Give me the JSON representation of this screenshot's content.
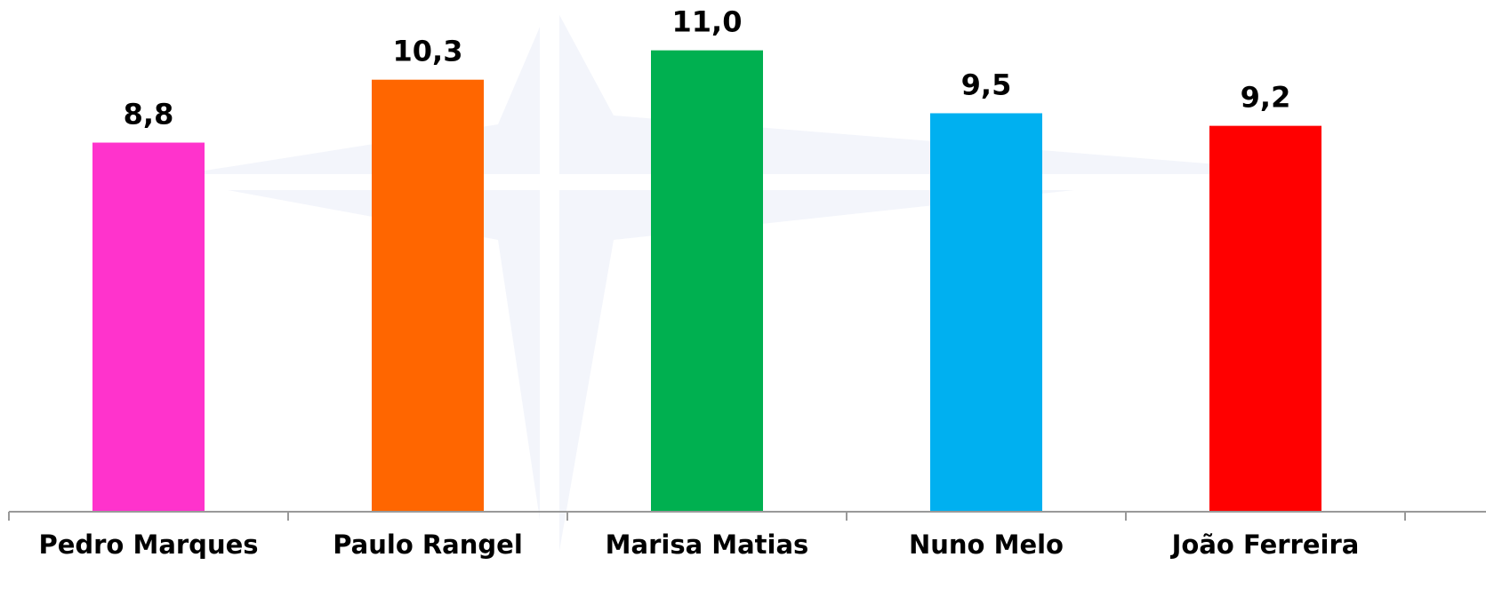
{
  "chart_data": {
    "type": "bar",
    "categories": [
      "Pedro Marques",
      "Paulo Rangel",
      "Marisa Matias",
      "Nuno Melo",
      "João Ferreira"
    ],
    "values": [
      8.8,
      10.3,
      11.0,
      9.5,
      9.2
    ],
    "value_labels": [
      "8,8",
      "10,3",
      "11,0",
      "9,5",
      "9,2"
    ],
    "colors": [
      "#ff33cc",
      "#ff6600",
      "#00b050",
      "#00b0f0",
      "#ff0000"
    ],
    "ylim": [
      0,
      12.2
    ]
  }
}
